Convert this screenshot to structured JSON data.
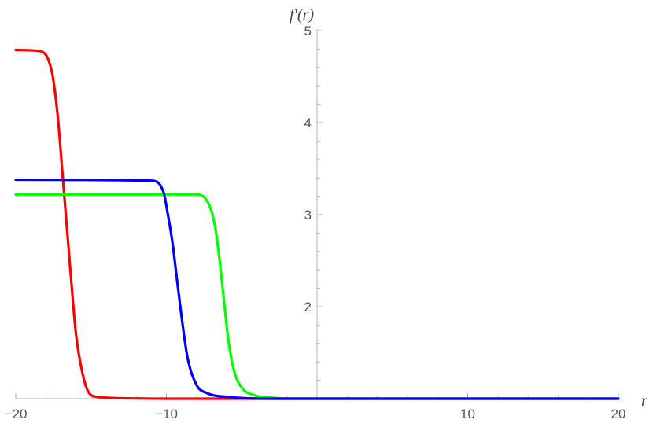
{
  "chart_data": {
    "type": "line",
    "title": "",
    "xlabel": "r",
    "ylabel": "f′(r)",
    "xlim": [
      -20,
      20
    ],
    "ylim": [
      1.0,
      5.0
    ],
    "x_ticks": [
      -20,
      -10,
      10,
      20
    ],
    "x_tick_labels": [
      "−20",
      "−10",
      "10",
      "20"
    ],
    "y_ticks": [
      2,
      3,
      4,
      5
    ],
    "y_tick_labels": [
      "2",
      "3",
      "4",
      "5"
    ],
    "grid": false,
    "legend": "none",
    "series": [
      {
        "color": "#ff0000",
        "x": [
          -20,
          -18.5,
          -17.6,
          -17.2,
          -16.9,
          -16.6,
          -16.3,
          -16.0,
          -15.6,
          -15.2,
          -14.6,
          -13.0,
          -10.0,
          0,
          20
        ],
        "y": [
          4.79,
          4.78,
          4.55,
          4.05,
          3.45,
          2.85,
          2.25,
          1.7,
          1.3,
          1.08,
          1.02,
          1.005,
          1.0,
          1.0,
          1.0
        ]
      },
      {
        "color": "#0000ff",
        "x": [
          -20,
          -11.0,
          -10.2,
          -9.9,
          -9.6,
          -9.3,
          -9.0,
          -8.6,
          -8.0,
          -7.3,
          -6.0,
          -3.0,
          0,
          20
        ],
        "y": [
          3.38,
          3.37,
          3.25,
          3.0,
          2.7,
          2.3,
          1.9,
          1.45,
          1.15,
          1.06,
          1.02,
          1.0,
          1.0,
          1.0
        ]
      },
      {
        "color": "#00ff00",
        "x": [
          -20,
          -8.0,
          -7.2,
          -6.8,
          -6.5,
          -6.2,
          -5.9,
          -5.5,
          -5.0,
          -4.2,
          -3.0,
          -1.0,
          0,
          20
        ],
        "y": [
          3.22,
          3.22,
          3.12,
          2.9,
          2.55,
          2.1,
          1.65,
          1.3,
          1.12,
          1.04,
          1.01,
          1.0,
          1.0,
          1.0
        ]
      }
    ]
  }
}
